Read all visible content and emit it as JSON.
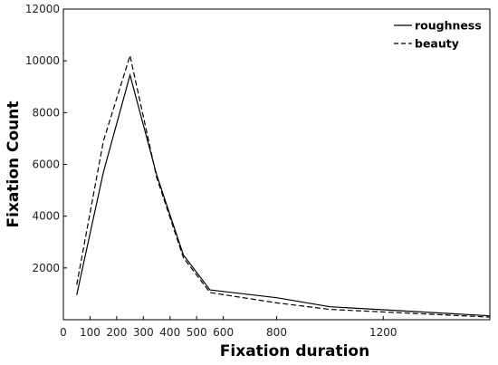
{
  "chart_data": {
    "type": "line",
    "xlabel": "Fixation duration",
    "ylabel": "Fixation Count",
    "xlim": [
      0,
      1600
    ],
    "ylim": [
      0,
      12000
    ],
    "x_ticks": [
      0,
      100,
      200,
      300,
      400,
      500,
      600,
      800,
      1200
    ],
    "y_ticks": [
      2000,
      4000,
      6000,
      8000,
      10000,
      12000
    ],
    "grid": false,
    "legend_position": "top-right",
    "series": [
      {
        "name": "roughness",
        "line_style": "solid",
        "color": "#000000",
        "x": [
          50,
          150,
          250,
          350,
          450,
          550,
          800,
          1000,
          1600
        ],
        "y": [
          950,
          5700,
          9450,
          5600,
          2500,
          1150,
          850,
          500,
          150
        ]
      },
      {
        "name": "beauty",
        "line_style": "dashed",
        "color": "#000000",
        "x": [
          50,
          150,
          250,
          350,
          450,
          550,
          800,
          1000,
          1600
        ],
        "y": [
          1350,
          6900,
          10200,
          5500,
          2400,
          1050,
          650,
          400,
          100
        ]
      }
    ]
  }
}
